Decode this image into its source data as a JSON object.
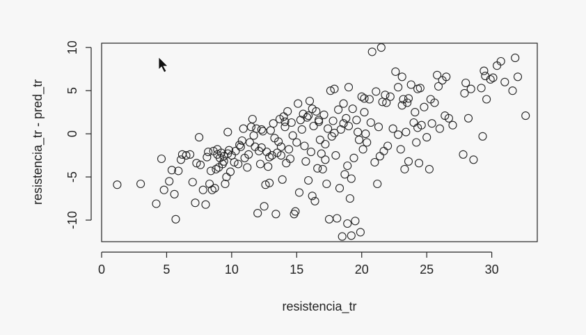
{
  "chart_data": {
    "type": "scatter",
    "xlabel": "resistencia_tr",
    "ylabel": "resistencia_tr - pred_tr",
    "xlim": [
      0,
      33.5
    ],
    "ylim": [
      -12.5,
      10.5
    ],
    "xticks": [
      0,
      5,
      10,
      15,
      20,
      25,
      30
    ],
    "yticks": [
      -10,
      -5,
      0,
      5,
      10
    ],
    "points": [
      [
        1.2,
        -5.9
      ],
      [
        3.0,
        -5.8
      ],
      [
        4.2,
        -8.1
      ],
      [
        4.6,
        -2.9
      ],
      [
        4.8,
        -6.5
      ],
      [
        5.2,
        -5.5
      ],
      [
        5.4,
        -4.2
      ],
      [
        5.6,
        -7.0
      ],
      [
        5.7,
        -9.9
      ],
      [
        5.9,
        -4.3
      ],
      [
        6.1,
        -3.0
      ],
      [
        6.2,
        -2.4
      ],
      [
        6.5,
        -2.5
      ],
      [
        6.8,
        -2.4
      ],
      [
        7.0,
        -5.6
      ],
      [
        7.2,
        -8.0
      ],
      [
        7.3,
        -3.4
      ],
      [
        7.5,
        -0.4
      ],
      [
        7.6,
        -3.6
      ],
      [
        7.8,
        -6.5
      ],
      [
        8.0,
        -8.2
      ],
      [
        8.1,
        -2.7
      ],
      [
        8.2,
        -2.1
      ],
      [
        8.3,
        -5.8
      ],
      [
        8.4,
        -4.3
      ],
      [
        8.5,
        -6.5
      ],
      [
        8.6,
        -2.0
      ],
      [
        8.7,
        -6.3
      ],
      [
        8.8,
        -4.1
      ],
      [
        8.9,
        -2.4
      ],
      [
        9.0,
        -3.9
      ],
      [
        9.1,
        -2.8
      ],
      [
        9.2,
        -2.2
      ],
      [
        9.3,
        -3.5
      ],
      [
        9.4,
        -3.2
      ],
      [
        9.5,
        -5.8
      ],
      [
        9.6,
        -5.0
      ],
      [
        9.7,
        -2.3
      ],
      [
        9.7,
        0.2
      ],
      [
        9.8,
        -1.9
      ],
      [
        9.9,
        -4.4
      ],
      [
        10.0,
        -2.5
      ],
      [
        10.2,
        -3.3
      ],
      [
        10.3,
        -2.0
      ],
      [
        10.5,
        -3.5
      ],
      [
        10.7,
        -1.5
      ],
      [
        10.8,
        -0.8
      ],
      [
        10.9,
        0.6
      ],
      [
        11.0,
        -2.8
      ],
      [
        11.2,
        -3.9
      ],
      [
        11.3,
        -2.4
      ],
      [
        11.4,
        -1.0
      ],
      [
        11.5,
        0.8
      ],
      [
        11.6,
        1.7
      ],
      [
        11.7,
        -0.2
      ],
      [
        11.8,
        -1.5
      ],
      [
        12.0,
        -9.2
      ],
      [
        12.1,
        -2.0
      ],
      [
        12.2,
        -3.5
      ],
      [
        12.3,
        -1.6
      ],
      [
        12.4,
        0.3
      ],
      [
        12.5,
        -8.4
      ],
      [
        12.6,
        -5.9
      ],
      [
        12.7,
        -2.1
      ],
      [
        12.8,
        -3.8
      ],
      [
        12.9,
        -5.7
      ],
      [
        13.0,
        0.4
      ],
      [
        13.1,
        -2.5
      ],
      [
        13.2,
        1.2
      ],
      [
        13.3,
        -0.5
      ],
      [
        13.4,
        -9.3
      ],
      [
        13.5,
        -2.2
      ],
      [
        13.6,
        -0.9
      ],
      [
        13.7,
        1.7
      ],
      [
        13.8,
        -1.5
      ],
      [
        13.9,
        -5.3
      ],
      [
        14.0,
        2.0
      ],
      [
        14.1,
        0.8
      ],
      [
        14.2,
        -3.4
      ],
      [
        14.3,
        2.6
      ],
      [
        14.4,
        -1.8
      ],
      [
        14.5,
        -2.9
      ],
      [
        14.6,
        1.3
      ],
      [
        14.7,
        -0.2
      ],
      [
        14.8,
        -9.3
      ],
      [
        14.9,
        -9.0
      ],
      [
        15.0,
        -1.0
      ],
      [
        15.1,
        3.5
      ],
      [
        15.2,
        -6.8
      ],
      [
        15.3,
        1.6
      ],
      [
        15.4,
        0.5
      ],
      [
        15.5,
        2.3
      ],
      [
        15.6,
        -1.4
      ],
      [
        15.7,
        -3.2
      ],
      [
        15.8,
        1.9
      ],
      [
        15.9,
        -5.4
      ],
      [
        16.0,
        3.8
      ],
      [
        16.1,
        -2.1
      ],
      [
        16.2,
        -7.2
      ],
      [
        16.3,
        0.9
      ],
      [
        16.4,
        -7.8
      ],
      [
        16.5,
        2.6
      ],
      [
        16.6,
        -4.0
      ],
      [
        16.7,
        1.4
      ],
      [
        16.8,
        -0.7
      ],
      [
        16.9,
        -2.3
      ],
      [
        17.0,
        -4.1
      ],
      [
        17.1,
        2.2
      ],
      [
        17.2,
        -1.2
      ],
      [
        17.3,
        -5.8
      ],
      [
        17.4,
        0.6
      ],
      [
        17.5,
        -9.9
      ],
      [
        17.6,
        5.0
      ],
      [
        17.7,
        -0.3
      ],
      [
        17.8,
        1.5
      ],
      [
        17.9,
        5.2
      ],
      [
        18.0,
        -2.5
      ],
      [
        18.1,
        -9.8
      ],
      [
        18.2,
        2.8
      ],
      [
        18.3,
        -6.3
      ],
      [
        18.4,
        0.5
      ],
      [
        18.5,
        -11.9
      ],
      [
        18.6,
        3.5
      ],
      [
        18.7,
        -4.7
      ],
      [
        18.8,
        1.8
      ],
      [
        18.9,
        -10.4
      ],
      [
        19.0,
        0.9
      ],
      [
        19.1,
        -7.5
      ],
      [
        19.2,
        -11.8
      ],
      [
        19.3,
        2.9
      ],
      [
        19.4,
        -2.8
      ],
      [
        19.5,
        -10.1
      ],
      [
        19.6,
        1.6
      ],
      [
        19.7,
        0.2
      ],
      [
        19.8,
        -0.7
      ],
      [
        19.9,
        -11.4
      ],
      [
        20.0,
        4.3
      ],
      [
        20.1,
        -1.8
      ],
      [
        20.2,
        2.5
      ],
      [
        20.3,
        0.0
      ],
      [
        20.4,
        -1.0
      ],
      [
        20.6,
        4.0
      ],
      [
        20.7,
        1.3
      ],
      [
        20.8,
        9.5
      ],
      [
        21.0,
        -3.3
      ],
      [
        21.1,
        4.9
      ],
      [
        21.2,
        -5.8
      ],
      [
        21.3,
        0.8
      ],
      [
        21.4,
        -2.6
      ],
      [
        21.5,
        10.0
      ],
      [
        21.6,
        3.7
      ],
      [
        21.7,
        -2.0
      ],
      [
        21.8,
        4.5
      ],
      [
        22.0,
        -1.4
      ],
      [
        22.2,
        4.3
      ],
      [
        22.4,
        0.6
      ],
      [
        22.6,
        7.2
      ],
      [
        22.8,
        5.4
      ],
      [
        23.0,
        -1.8
      ],
      [
        23.1,
        6.6
      ],
      [
        23.2,
        4.0
      ],
      [
        23.3,
        -4.1
      ],
      [
        23.4,
        0.2
      ],
      [
        23.5,
        3.6
      ],
      [
        23.6,
        -3.2
      ],
      [
        23.8,
        5.7
      ],
      [
        24.0,
        1.3
      ],
      [
        24.1,
        2.5
      ],
      [
        24.2,
        -1.0
      ],
      [
        24.3,
        0.7
      ],
      [
        24.4,
        -3.4
      ],
      [
        24.5,
        5.3
      ],
      [
        24.6,
        1.0
      ],
      [
        24.8,
        3.1
      ],
      [
        25.0,
        -0.4
      ],
      [
        25.2,
        -4.1
      ],
      [
        25.3,
        4.0
      ],
      [
        25.4,
        1.2
      ],
      [
        25.6,
        3.6
      ],
      [
        25.8,
        6.8
      ],
      [
        25.9,
        5.5
      ],
      [
        26.0,
        0.6
      ],
      [
        26.2,
        6.2
      ],
      [
        26.4,
        2.1
      ],
      [
        26.7,
        1.8
      ],
      [
        27.0,
        1.0
      ],
      [
        27.8,
        -2.4
      ],
      [
        27.9,
        4.7
      ],
      [
        28.0,
        5.9
      ],
      [
        28.2,
        1.8
      ],
      [
        28.4,
        5.2
      ],
      [
        28.6,
        -3.0
      ],
      [
        29.2,
        5.3
      ],
      [
        29.3,
        -0.3
      ],
      [
        29.4,
        7.3
      ],
      [
        29.5,
        6.7
      ],
      [
        29.6,
        4.0
      ],
      [
        29.9,
        6.3
      ],
      [
        30.1,
        6.5
      ],
      [
        30.4,
        7.9
      ],
      [
        30.7,
        8.4
      ],
      [
        31.0,
        6.0
      ],
      [
        31.6,
        5.0
      ],
      [
        31.8,
        8.8
      ],
      [
        32.0,
        6.6
      ],
      [
        32.6,
        2.1
      ],
      [
        19.0,
        5.4
      ],
      [
        23.6,
        4.1
      ],
      [
        11.9,
        0.6
      ],
      [
        16.7,
        1.6
      ],
      [
        12.3,
        0.5
      ],
      [
        19.2,
        -5.2
      ],
      [
        21.9,
        3.6
      ],
      [
        15.9,
        2.1
      ],
      [
        24.3,
        5.2
      ],
      [
        17.2,
        -3.0
      ],
      [
        18.9,
        -3.7
      ],
      [
        9.4,
        -2.6
      ],
      [
        14.1,
        1.4
      ],
      [
        8.9,
        -1.8
      ],
      [
        23.1,
        3.3
      ],
      [
        20.2,
        4.1
      ],
      [
        16.2,
        2.9
      ],
      [
        13.8,
        -2.5
      ],
      [
        22.8,
        -0.1
      ],
      [
        18.6,
        1.2
      ],
      [
        10.6,
        -1.3
      ],
      [
        17.9,
        0.1
      ],
      [
        26.5,
        6.6
      ],
      [
        12.9,
        -2.7
      ]
    ]
  }
}
